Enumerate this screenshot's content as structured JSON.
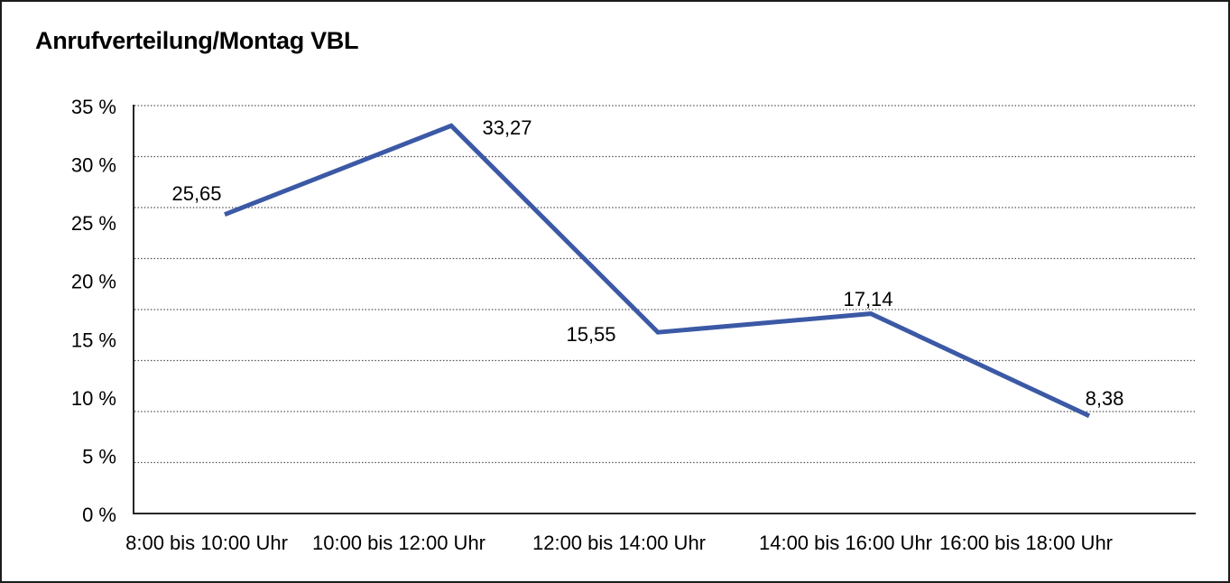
{
  "chart_data": {
    "type": "line",
    "title": "Anrufverteilung/Montag VBL",
    "categories": [
      "8:00 bis 10:00 Uhr",
      "10:00 bis 12:00 Uhr",
      "12:00 bis 14:00 Uhr",
      "14:00 bis 16:00 Uhr",
      "16:00 bis 18:00 Uhr"
    ],
    "values": [
      25.65,
      33.27,
      15.55,
      17.14,
      8.38
    ],
    "value_labels": [
      "25,65",
      "33,27",
      "15,55",
      "17,14",
      "8,38"
    ],
    "xlabel": "",
    "ylabel": "",
    "ylim": [
      0,
      35
    ],
    "y_ticks": [
      {
        "label": "35 %",
        "value": 35
      },
      {
        "label": "30 %",
        "value": 30
      },
      {
        "label": "25 %",
        "value": 25
      },
      {
        "label": "20 %",
        "value": 20
      },
      {
        "label": "15 %",
        "value": 15
      },
      {
        "label": "10 %",
        "value": 10
      },
      {
        "label": "5 %",
        "value": 5
      },
      {
        "label": "0 %",
        "value": 0
      }
    ],
    "grid": "horizontal-dotted",
    "gridline_divisions": 8,
    "legend": "none",
    "line_color": "#3b59a5",
    "axis_color": "#262626",
    "gridline_color": "#4a4a4a",
    "text_color": "#000000",
    "background_color": "#ffffff",
    "border_color": "#1c1c1c"
  }
}
